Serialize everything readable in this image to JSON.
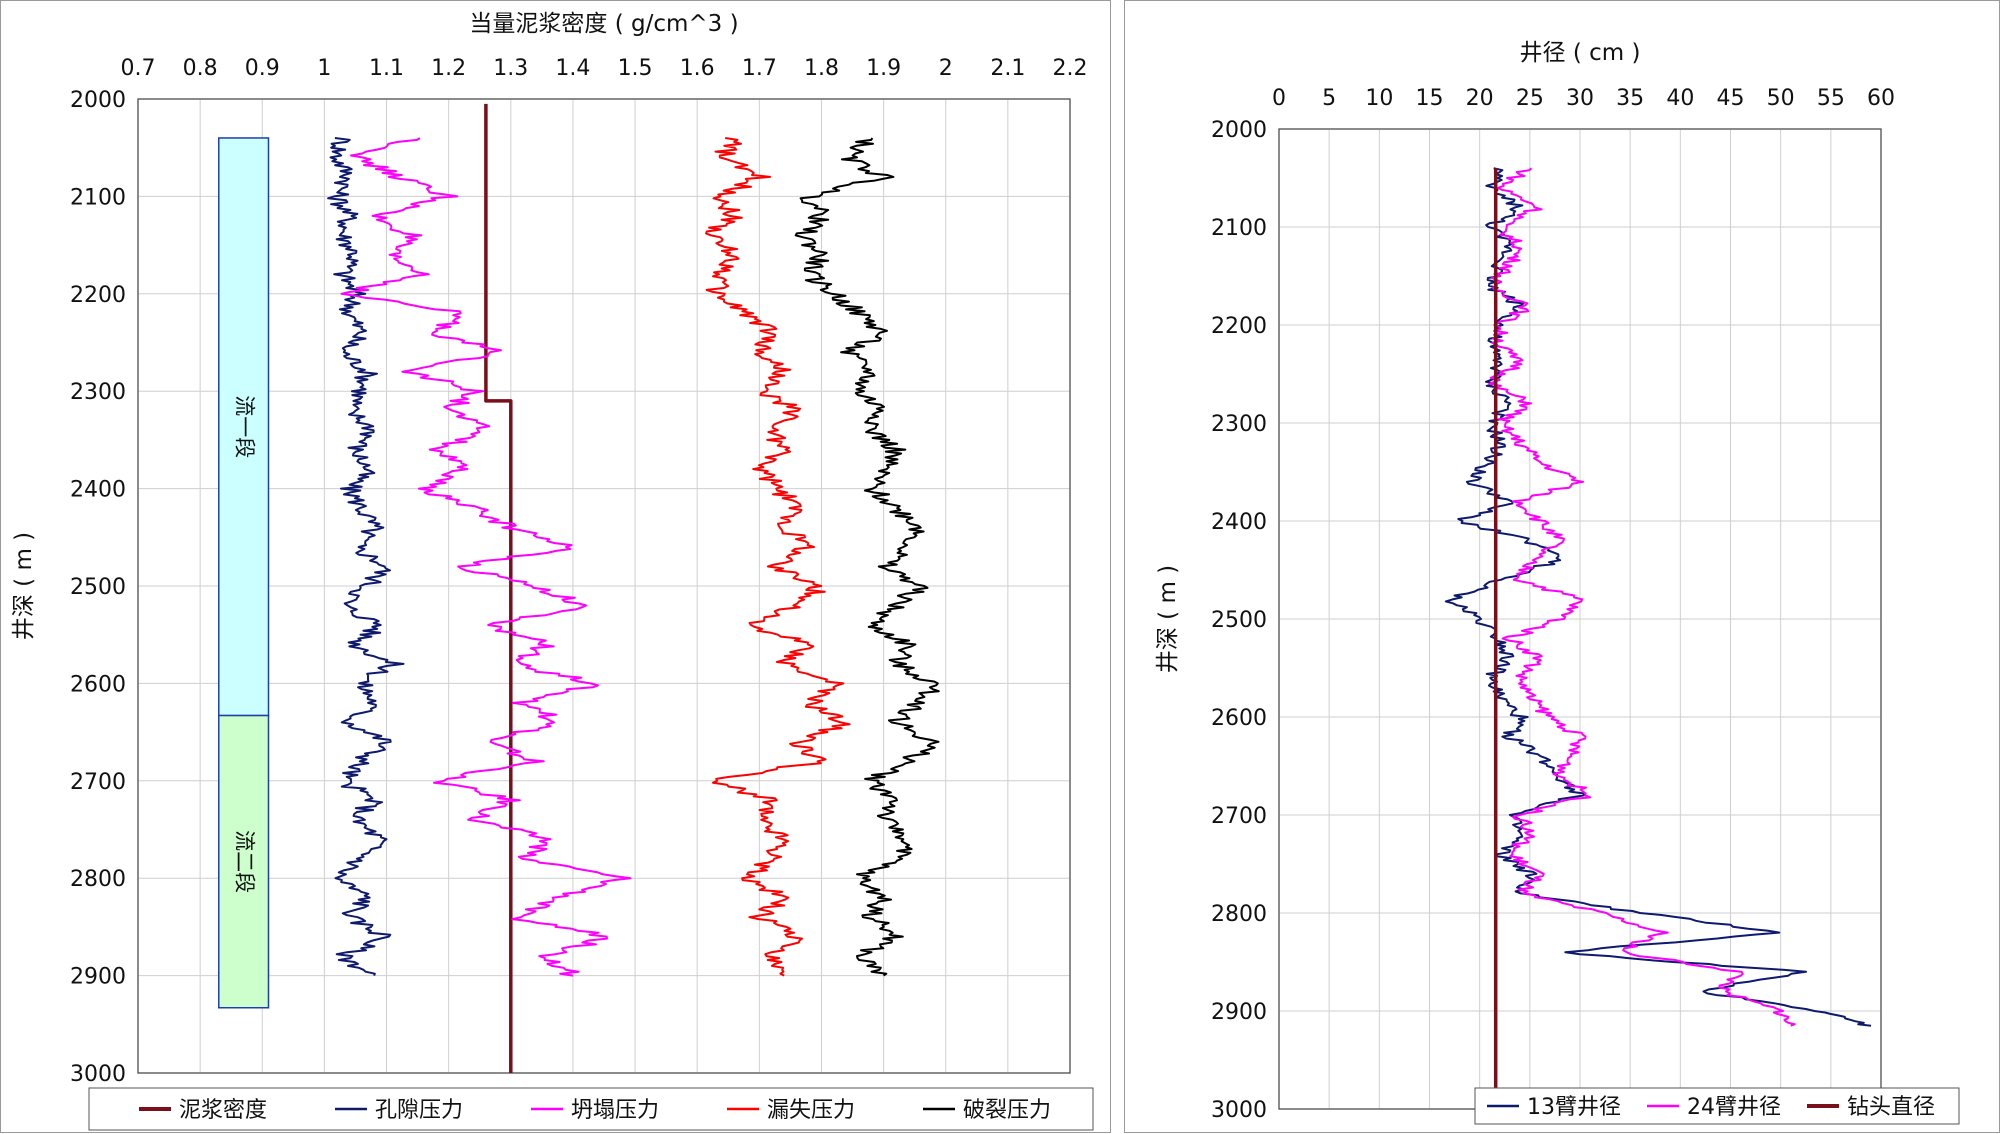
{
  "chart_data": [
    {
      "type": "line",
      "xlabel": "当量泥浆密度 ( g/cm^3 )",
      "ylabel": "井深 ( m )",
      "xlim": [
        0.7,
        2.2
      ],
      "ylim": [
        2000,
        3000
      ],
      "y_inverted": true,
      "grid": true,
      "legend_position": "bottom",
      "x_ticks": [
        "0.7",
        "0.8",
        "0.9",
        "1",
        "1.1",
        "1.2",
        "1.3",
        "1.4",
        "1.5",
        "1.6",
        "1.7",
        "1.8",
        "1.9",
        "2",
        "2.1",
        "2.2"
      ],
      "y_ticks": [
        "2000",
        "2100",
        "2200",
        "2300",
        "2400",
        "2500",
        "2600",
        "2700",
        "2800",
        "2900",
        "3000"
      ],
      "zones": [
        {
          "label": "流一段",
          "top": 2040,
          "bottom": 2633,
          "x_from": 0.83,
          "x_to": 0.91,
          "color": "#ccffff"
        },
        {
          "label": "流二段",
          "top": 2633,
          "bottom": 2933,
          "x_from": 0.83,
          "x_to": 0.91,
          "color": "#ccffcc"
        }
      ],
      "series": [
        {
          "name": "泥浆密度",
          "color": "#7a0f1c",
          "points": [
            [
              1.26,
              2005
            ],
            [
              1.26,
              2310
            ],
            [
              1.3,
              2310
            ],
            [
              1.3,
              3000
            ]
          ]
        },
        {
          "name": "孔隙压力",
          "color": "#0d1a6e",
          "depth": [
            2040,
            2060,
            2080,
            2100,
            2120,
            2140,
            2160,
            2180,
            2200,
            2220,
            2240,
            2260,
            2280,
            2300,
            2320,
            2340,
            2360,
            2380,
            2400,
            2420,
            2440,
            2460,
            2480,
            2500,
            2520,
            2540,
            2560,
            2580,
            2600,
            2620,
            2640,
            2660,
            2680,
            2700,
            2720,
            2740,
            2760,
            2780,
            2800,
            2820,
            2840,
            2860,
            2880,
            2900
          ],
          "values": [
            1.03,
            1.02,
            1.04,
            1.02,
            1.04,
            1.03,
            1.05,
            1.03,
            1.05,
            1.04,
            1.06,
            1.03,
            1.07,
            1.06,
            1.04,
            1.08,
            1.05,
            1.07,
            1.04,
            1.06,
            1.08,
            1.05,
            1.1,
            1.07,
            1.03,
            1.09,
            1.05,
            1.11,
            1.06,
            1.08,
            1.04,
            1.1,
            1.06,
            1.03,
            1.08,
            1.05,
            1.09,
            1.06,
            1.02,
            1.07,
            1.04,
            1.1,
            1.03,
            1.08
          ]
        },
        {
          "name": "坍塌压力",
          "color": "#ff00ff",
          "depth": [
            2040,
            2060,
            2080,
            2100,
            2120,
            2140,
            2160,
            2180,
            2200,
            2220,
            2240,
            2260,
            2280,
            2300,
            2320,
            2340,
            2360,
            2380,
            2400,
            2420,
            2440,
            2460,
            2480,
            2500,
            2520,
            2540,
            2560,
            2580,
            2600,
            2620,
            2640,
            2660,
            2680,
            2700,
            2720,
            2740,
            2760,
            2780,
            2800,
            2820,
            2840,
            2860,
            2880,
            2900
          ],
          "values": [
            1.15,
            1.05,
            1.12,
            1.2,
            1.08,
            1.14,
            1.1,
            1.16,
            1.03,
            1.22,
            1.18,
            1.28,
            1.14,
            1.24,
            1.2,
            1.26,
            1.18,
            1.22,
            1.16,
            1.24,
            1.3,
            1.4,
            1.22,
            1.34,
            1.42,
            1.26,
            1.36,
            1.3,
            1.44,
            1.32,
            1.38,
            1.26,
            1.34,
            1.18,
            1.3,
            1.24,
            1.36,
            1.32,
            1.48,
            1.38,
            1.3,
            1.46,
            1.36,
            1.4
          ]
        },
        {
          "name": "漏失压力",
          "color": "#ff0000",
          "depth": [
            2040,
            2060,
            2080,
            2100,
            2120,
            2140,
            2160,
            2180,
            2200,
            2220,
            2240,
            2260,
            2280,
            2300,
            2320,
            2340,
            2360,
            2380,
            2400,
            2420,
            2440,
            2460,
            2480,
            2500,
            2520,
            2540,
            2560,
            2580,
            2600,
            2620,
            2640,
            2660,
            2680,
            2700,
            2720,
            2740,
            2760,
            2780,
            2800,
            2820,
            2840,
            2860,
            2880,
            2900
          ],
          "values": [
            1.66,
            1.64,
            1.7,
            1.64,
            1.66,
            1.62,
            1.66,
            1.64,
            1.63,
            1.68,
            1.72,
            1.7,
            1.74,
            1.7,
            1.76,
            1.72,
            1.74,
            1.7,
            1.73,
            1.76,
            1.74,
            1.78,
            1.72,
            1.8,
            1.76,
            1.68,
            1.78,
            1.74,
            1.82,
            1.78,
            1.84,
            1.76,
            1.8,
            1.62,
            1.72,
            1.7,
            1.74,
            1.72,
            1.68,
            1.74,
            1.7,
            1.76,
            1.72,
            1.74
          ]
        },
        {
          "name": "破裂压力",
          "color": "#000000",
          "depth": [
            2040,
            2060,
            2080,
            2100,
            2120,
            2140,
            2160,
            2180,
            2200,
            2220,
            2240,
            2260,
            2280,
            2300,
            2320,
            2340,
            2360,
            2380,
            2400,
            2420,
            2440,
            2460,
            2480,
            2500,
            2520,
            2540,
            2560,
            2580,
            2600,
            2620,
            2640,
            2660,
            2680,
            2700,
            2720,
            2740,
            2760,
            2780,
            2800,
            2820,
            2840,
            2860,
            2880,
            2900
          ],
          "values": [
            1.88,
            1.84,
            1.9,
            1.78,
            1.8,
            1.77,
            1.8,
            1.78,
            1.82,
            1.86,
            1.9,
            1.84,
            1.88,
            1.86,
            1.9,
            1.88,
            1.92,
            1.9,
            1.88,
            1.92,
            1.96,
            1.94,
            1.9,
            1.96,
            1.92,
            1.88,
            1.94,
            1.92,
            1.98,
            1.96,
            1.92,
            1.98,
            1.94,
            1.88,
            1.92,
            1.9,
            1.94,
            1.92,
            1.86,
            1.9,
            1.88,
            1.92,
            1.86,
            1.9
          ]
        }
      ]
    },
    {
      "type": "line",
      "xlabel": "井径 ( cm )",
      "ylabel": "井深 ( m )",
      "xlim": [
        0,
        60
      ],
      "ylim": [
        2000,
        3000
      ],
      "y_inverted": true,
      "grid": true,
      "legend_position": "bottom-right",
      "x_ticks": [
        "0",
        "5",
        "10",
        "15",
        "20",
        "25",
        "30",
        "35",
        "40",
        "45",
        "50",
        "55",
        "60"
      ],
      "y_ticks": [
        "2000",
        "2100",
        "2200",
        "2300",
        "2400",
        "2500",
        "2600",
        "2700",
        "2800",
        "2900",
        "3000"
      ],
      "series": [
        {
          "name": "13臂井径",
          "color": "#0d1a6e",
          "depth": [
            2040,
            2060,
            2080,
            2100,
            2120,
            2140,
            2160,
            2180,
            2200,
            2220,
            2240,
            2260,
            2280,
            2300,
            2320,
            2340,
            2360,
            2380,
            2400,
            2420,
            2440,
            2460,
            2480,
            2500,
            2520,
            2540,
            2560,
            2580,
            2600,
            2620,
            2640,
            2660,
            2680,
            2700,
            2720,
            2740,
            2760,
            2780,
            2800,
            2820,
            2840,
            2860,
            2880,
            2900,
            2915
          ],
          "values": [
            22,
            21,
            24,
            21,
            23,
            22,
            21,
            24,
            22,
            21,
            22,
            21,
            23,
            21,
            22,
            21,
            19,
            23,
            18,
            25,
            28,
            22,
            17,
            20,
            22,
            23,
            21,
            22,
            24,
            23,
            26,
            28,
            30,
            23,
            24,
            22,
            25,
            24,
            36,
            50,
            28,
            52,
            42,
            54,
            59
          ]
        },
        {
          "name": "24臂井径",
          "color": "#ff00ff",
          "depth": [
            2040,
            2060,
            2080,
            2100,
            2120,
            2140,
            2160,
            2180,
            2200,
            2220,
            2240,
            2260,
            2280,
            2300,
            2320,
            2340,
            2360,
            2380,
            2400,
            2420,
            2440,
            2460,
            2480,
            2500,
            2520,
            2540,
            2560,
            2580,
            2600,
            2620,
            2640,
            2660,
            2680,
            2700,
            2720,
            2740,
            2760,
            2780,
            2800,
            2820,
            2840,
            2860,
            2880,
            2900,
            2915
          ],
          "values": [
            25,
            22,
            26,
            22,
            24,
            23,
            21,
            25,
            22,
            22,
            24,
            21,
            25,
            22,
            24,
            26,
            30,
            24,
            26,
            28,
            25,
            24,
            30,
            28,
            23,
            26,
            24,
            25,
            27,
            30,
            29,
            28,
            31,
            24,
            25,
            23,
            26,
            24,
            32,
            38,
            34,
            46,
            44,
            50,
            51
          ]
        },
        {
          "name": "钻头直径",
          "color": "#7a0f1c",
          "points": [
            [
              21.6,
              2040
            ],
            [
              21.6,
              3000
            ]
          ]
        }
      ]
    }
  ]
}
